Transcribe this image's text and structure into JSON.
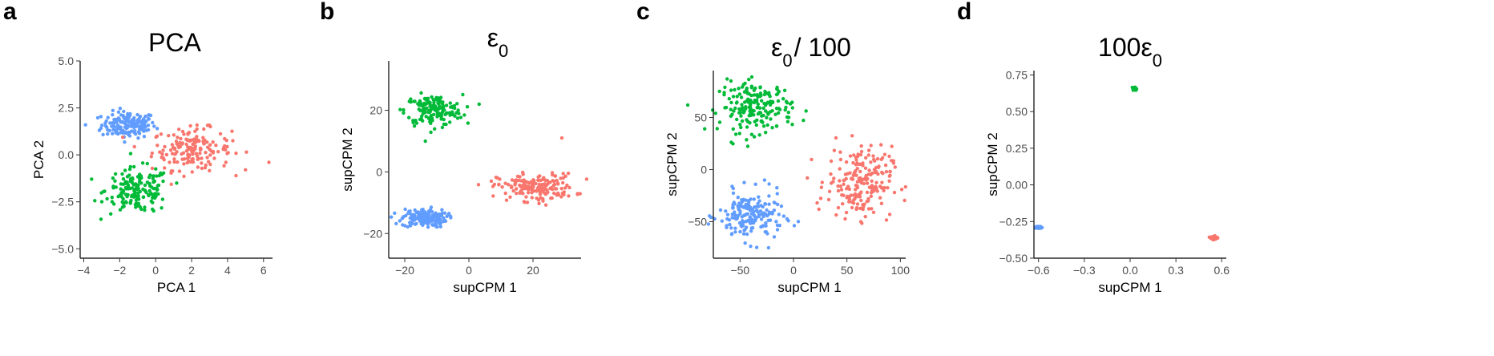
{
  "colors": {
    "blue": "#619CFF",
    "green": "#00BA38",
    "red": "#F8766D"
  },
  "chart_data": [
    {
      "type": "scatter",
      "panel_letter": "a",
      "title": "PCA",
      "title_sub": "",
      "xlabel": "PCA 1",
      "ylabel": "PCA 2",
      "xlim": [
        -4.2,
        6.5
      ],
      "ylim": [
        -5.5,
        5.0
      ],
      "xticks": [
        -4,
        -2,
        0,
        2,
        4,
        6
      ],
      "xtick_labels": [
        "−4",
        "−2",
        "0",
        "2",
        "4",
        "6"
      ],
      "yticks": [
        -5,
        -2.5,
        0,
        2.5,
        5
      ],
      "ytick_labels": [
        "−5.0",
        "−2.5",
        "0.0",
        "2.5",
        "5.0"
      ],
      "grid": false,
      "legend": "none",
      "clusters": [
        {
          "color": "blue",
          "center": [
            -1.5,
            1.6
          ],
          "spread": [
            0.75,
            0.35
          ],
          "n": 160
        },
        {
          "color": "red",
          "center": [
            2.0,
            0.3
          ],
          "spread": [
            1.1,
            0.55
          ],
          "n": 170
        },
        {
          "color": "green",
          "center": [
            -1.0,
            -1.9
          ],
          "spread": [
            0.9,
            0.6
          ],
          "n": 170
        }
      ],
      "extra_points": [
        {
          "color": "red",
          "x": 6.3,
          "y": -0.4
        },
        {
          "color": "blue",
          "x": -3.9,
          "y": 1.6
        }
      ]
    },
    {
      "type": "scatter",
      "panel_letter": "b",
      "title": "ε",
      "title_sub": "0",
      "xlabel": "supCPM 1",
      "ylabel": "supCPM 2",
      "xlim": [
        -25,
        35
      ],
      "ylim": [
        -28,
        36
      ],
      "xticks": [
        -20,
        0,
        20
      ],
      "xtick_labels": [
        "−20",
        "0",
        "20"
      ],
      "yticks": [
        -20,
        0,
        20
      ],
      "ytick_labels": [
        "−20",
        "0",
        "20"
      ],
      "grid": false,
      "legend": "none",
      "clusters": [
        {
          "color": "green",
          "center": [
            -11,
            20
          ],
          "spread": [
            4.5,
            2.5
          ],
          "n": 160
        },
        {
          "color": "blue",
          "center": [
            -14,
            -15
          ],
          "spread": [
            3.5,
            1.5
          ],
          "n": 160
        },
        {
          "color": "red",
          "center": [
            21,
            -5
          ],
          "spread": [
            6.0,
            2.2
          ],
          "n": 180
        }
      ],
      "extra_points": [
        {
          "color": "red",
          "x": 29,
          "y": 11
        },
        {
          "color": "red",
          "x": 7,
          "y": -3
        }
      ]
    },
    {
      "type": "scatter",
      "panel_letter": "c",
      "title": "ε",
      "title_sub": "0",
      "title_suffix": "/ 100",
      "xlabel": "supCPM 1",
      "ylabel": "supCPM 2",
      "xlim": [
        -75,
        105
      ],
      "ylim": [
        -85,
        95
      ],
      "xticks": [
        -50,
        0,
        50,
        100
      ],
      "xtick_labels": [
        "−50",
        "0",
        "50",
        "100"
      ],
      "yticks": [
        -50,
        0,
        50
      ],
      "ytick_labels": [
        "−50",
        "0",
        "50"
      ],
      "grid": false,
      "legend": "none",
      "clusters": [
        {
          "color": "green",
          "center": [
            -35,
            60
          ],
          "spread": [
            17,
            12
          ],
          "n": 190
        },
        {
          "color": "blue",
          "center": [
            -40,
            -45
          ],
          "spread": [
            15,
            12
          ],
          "n": 180
        },
        {
          "color": "red",
          "center": [
            62,
            -12
          ],
          "spread": [
            15,
            17
          ],
          "n": 200
        }
      ],
      "extra_points": [
        {
          "color": "red",
          "x": 13,
          "y": -8
        }
      ]
    },
    {
      "type": "scatter",
      "panel_letter": "d",
      "title": "100ε",
      "title_sub": "0",
      "xlabel": "supCPM 1",
      "ylabel": "supCPM 2",
      "xlim": [
        -0.63,
        0.63
      ],
      "ylim": [
        -0.5,
        0.78
      ],
      "xticks": [
        -0.6,
        -0.3,
        0,
        0.3,
        0.6
      ],
      "xtick_labels": [
        "−0.6",
        "−0.3",
        "0.0",
        "0.3",
        "0.6"
      ],
      "yticks": [
        -0.5,
        -0.25,
        0,
        0.25,
        0.5,
        0.75
      ],
      "ytick_labels": [
        "−0.50",
        "−0.25",
        "0.00",
        "0.25",
        "0.50",
        "0.75"
      ],
      "grid": false,
      "legend": "none",
      "clusters": [
        {
          "color": "green",
          "center": [
            0.03,
            0.655
          ],
          "spread": [
            0.006,
            0.006
          ],
          "n": 40
        },
        {
          "color": "blue",
          "center": [
            -0.595,
            -0.29
          ],
          "spread": [
            0.008,
            0.003
          ],
          "n": 40
        },
        {
          "color": "red",
          "center": [
            0.55,
            -0.36
          ],
          "spread": [
            0.012,
            0.006
          ],
          "n": 40
        }
      ],
      "extra_points": []
    }
  ]
}
